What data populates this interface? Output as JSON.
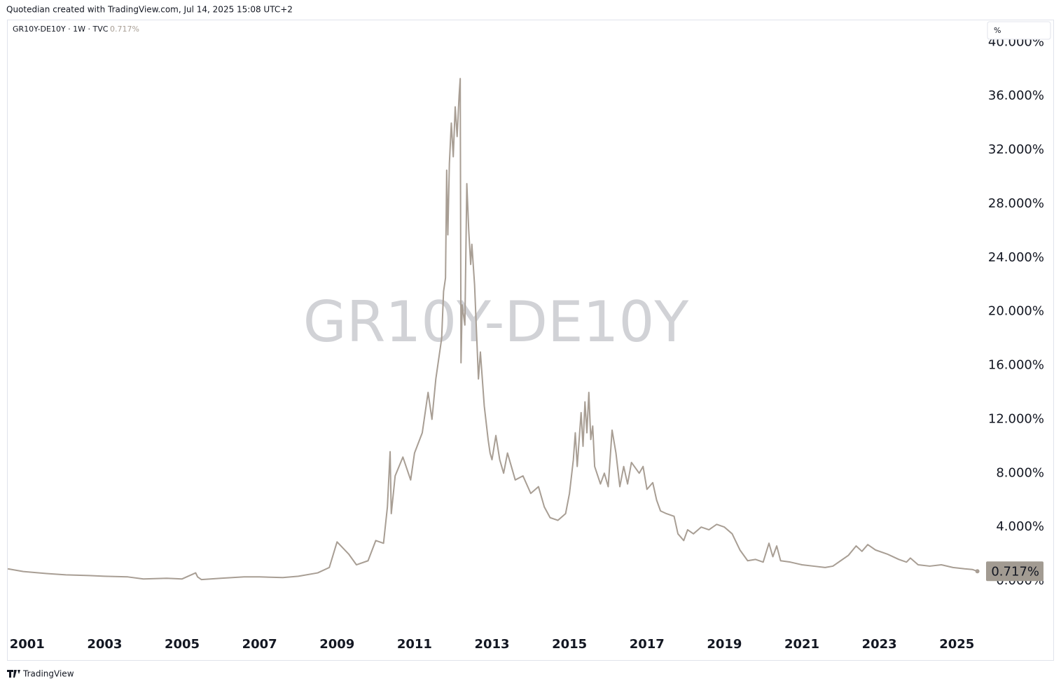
{
  "header": "Quotedian created with TradingView.com, Jul 14, 2025 15:08 UTC+2",
  "footer": "TradingView",
  "scale_button": "%",
  "chart_data": {
    "type": "line",
    "symbol": "GR10Y-DE10Y · 1W · TVC",
    "watermark": "GR10Y-DE10Y",
    "last_value": {
      "value": 0.717,
      "label": "0.717%"
    },
    "color": "#a89e94",
    "grid": false,
    "xlim": [
      2000.48,
      2025.7
    ],
    "xticks": [
      2001,
      2003,
      2005,
      2007,
      2009,
      2011,
      2013,
      2015,
      2017,
      2019,
      2021,
      2023,
      2025
    ],
    "ylim": [
      -3.69,
      41.68
    ],
    "yticks": [
      {
        "value": 0,
        "label": "0.000%"
      },
      {
        "value": 4,
        "label": "4.000%"
      },
      {
        "value": 8,
        "label": "8.000%"
      },
      {
        "value": 12,
        "label": "12.000%"
      },
      {
        "value": 16,
        "label": "16.000%"
      },
      {
        "value": 20,
        "label": "20.000%"
      },
      {
        "value": 24,
        "label": "24.000%"
      },
      {
        "value": 28,
        "label": "28.000%"
      },
      {
        "value": 32,
        "label": "32.000%"
      },
      {
        "value": 36,
        "label": "36.000%"
      },
      {
        "value": 40,
        "label": "40.000%"
      }
    ],
    "x": [
      2000.5,
      2000.9,
      2001.5,
      2002,
      2002.6,
      2003,
      2003.6,
      2004,
      2004.6,
      2005,
      2005.35,
      2005.4,
      2005.5,
      2006,
      2006.6,
      2007,
      2007.6,
      2008,
      2008.5,
      2008.8,
      2009.0,
      2009.3,
      2009.5,
      2009.8,
      2010.0,
      2010.2,
      2010.3,
      2010.37,
      2010.4,
      2010.5,
      2010.7,
      2010.9,
      2011.0,
      2011.2,
      2011.35,
      2011.45,
      2011.55,
      2011.7,
      2011.75,
      2011.8,
      2011.83,
      2011.86,
      2011.9,
      2011.95,
      2012.0,
      2012.05,
      2012.1,
      2012.15,
      2012.18,
      2012.2,
      2012.23,
      2012.3,
      2012.35,
      2012.4,
      2012.45,
      2012.48,
      2012.55,
      2012.65,
      2012.7,
      2012.8,
      2012.9,
      2012.95,
      2013.0,
      2013.1,
      2013.2,
      2013.3,
      2013.4,
      2013.5,
      2013.6,
      2013.8,
      2014.0,
      2014.2,
      2014.35,
      2014.5,
      2014.7,
      2014.9,
      2015.0,
      2015.1,
      2015.15,
      2015.2,
      2015.3,
      2015.35,
      2015.4,
      2015.45,
      2015.5,
      2015.55,
      2015.6,
      2015.65,
      2015.8,
      2015.9,
      2016.0,
      2016.1,
      2016.2,
      2016.3,
      2016.4,
      2016.5,
      2016.6,
      2016.8,
      2016.9,
      2017.0,
      2017.15,
      2017.25,
      2017.35,
      2017.5,
      2017.7,
      2017.8,
      2017.95,
      2018.05,
      2018.2,
      2018.4,
      2018.6,
      2018.8,
      2019.0,
      2019.2,
      2019.4,
      2019.6,
      2019.8,
      2020.0,
      2020.15,
      2020.25,
      2020.35,
      2020.45,
      2020.7,
      2021.0,
      2021.3,
      2021.6,
      2021.8,
      2022.0,
      2022.2,
      2022.4,
      2022.55,
      2022.7,
      2022.9,
      2023.2,
      2023.5,
      2023.7,
      2023.8,
      2024.0,
      2024.3,
      2024.6,
      2024.9,
      2025.2,
      2025.4,
      2025.53
    ],
    "values": [
      0.9,
      0.7,
      0.55,
      0.45,
      0.4,
      0.35,
      0.3,
      0.15,
      0.2,
      0.15,
      0.6,
      0.3,
      0.1,
      0.2,
      0.3,
      0.3,
      0.25,
      0.35,
      0.6,
      1.0,
      2.9,
      2.0,
      1.2,
      1.5,
      3.0,
      2.8,
      5.5,
      9.6,
      5.0,
      7.8,
      9.2,
      7.5,
      9.5,
      11.0,
      14.0,
      12.0,
      15.0,
      18.0,
      21.5,
      22.5,
      30.5,
      25.7,
      31.0,
      34.0,
      31.5,
      35.2,
      33.0,
      36.0,
      37.3,
      16.2,
      20.5,
      19.0,
      29.5,
      26.0,
      23.5,
      25.0,
      22.0,
      15.0,
      17.0,
      13.0,
      10.5,
      9.5,
      9.0,
      10.8,
      9.0,
      8.0,
      9.5,
      8.5,
      7.5,
      7.8,
      6.5,
      7.0,
      5.5,
      4.7,
      4.5,
      5.0,
      6.5,
      9.0,
      11.0,
      8.5,
      12.5,
      10.0,
      13.3,
      11.0,
      14.0,
      10.5,
      11.5,
      8.5,
      7.2,
      8.0,
      7.0,
      11.2,
      9.5,
      7.0,
      8.5,
      7.2,
      8.8,
      8.0,
      8.5,
      6.8,
      7.3,
      6.0,
      5.2,
      5.0,
      4.8,
      3.5,
      3.0,
      3.8,
      3.5,
      4.0,
      3.8,
      4.2,
      4.0,
      3.5,
      2.3,
      1.5,
      1.6,
      1.4,
      2.8,
      1.8,
      2.6,
      1.5,
      1.4,
      1.2,
      1.1,
      1.0,
      1.1,
      1.5,
      1.9,
      2.6,
      2.2,
      2.7,
      2.3,
      2.0,
      1.6,
      1.4,
      1.7,
      1.2,
      1.1,
      1.2,
      1.0,
      0.9,
      0.85,
      0.717
    ]
  }
}
